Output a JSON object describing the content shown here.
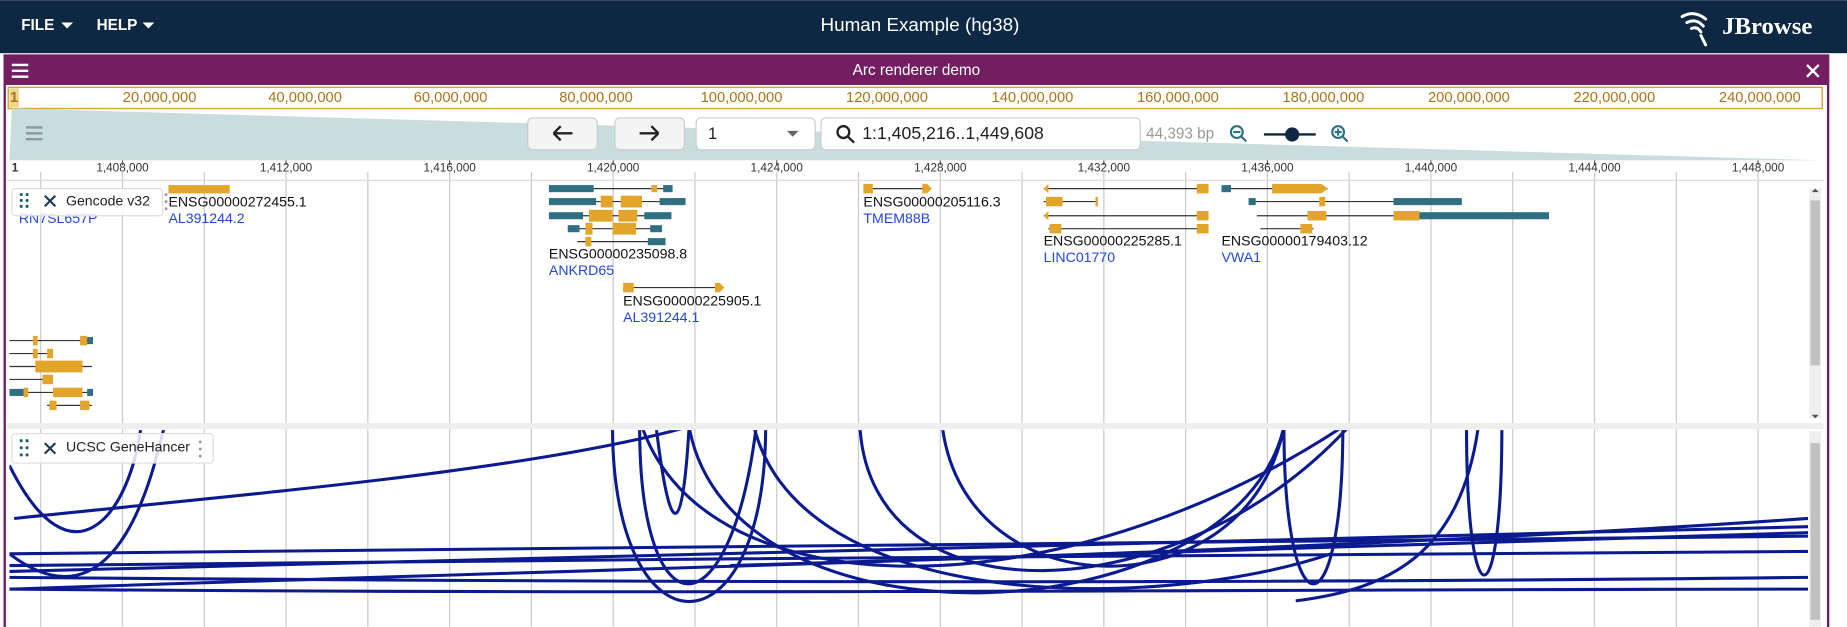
{
  "menu": {
    "file": "FILE",
    "help": "HELP"
  },
  "title": "Human Example (hg38)",
  "logo": "JBrowse",
  "view": {
    "title": "Arc renderer demo",
    "refname": "1",
    "overview_labels": [
      "20,000,000",
      "40,000,000",
      "60,000,000",
      "80,000,000",
      "100,000,000",
      "120,000,000",
      "140,000,000",
      "160,000,000",
      "180,000,000",
      "200,000,000",
      "220,000,000",
      "240,000,000"
    ],
    "locus": "1:1,405,216..1,449,608",
    "span": "44,393 bp",
    "ruler_labels": [
      "1,408,000",
      "1,412,000",
      "1,416,000",
      "1,420,000",
      "1,424,000",
      "1,428,000",
      "1,432,000",
      "1,436,000",
      "1,440,000",
      "1,444,000",
      "1,448,000"
    ]
  },
  "tracks": [
    {
      "name": "Gencode v32",
      "features": [
        {
          "name": "RN7SL657P"
        },
        {
          "id": "ENSG00000272455.1",
          "name": "AL391244.2"
        },
        {
          "id": "ENSG00000235098.8",
          "name": "ANKRD65"
        },
        {
          "id": "ENSG00000225905.1",
          "name": "AL391244.1"
        },
        {
          "id": "ENSG00000205116.3",
          "name": "TMEM88B"
        },
        {
          "id": "ENSG00000225285.1",
          "name": "LINC01770"
        },
        {
          "id": "ENSG00000179403.12",
          "name": "VWA1"
        }
      ]
    },
    {
      "name": "UCSC GeneHancer"
    }
  ]
}
